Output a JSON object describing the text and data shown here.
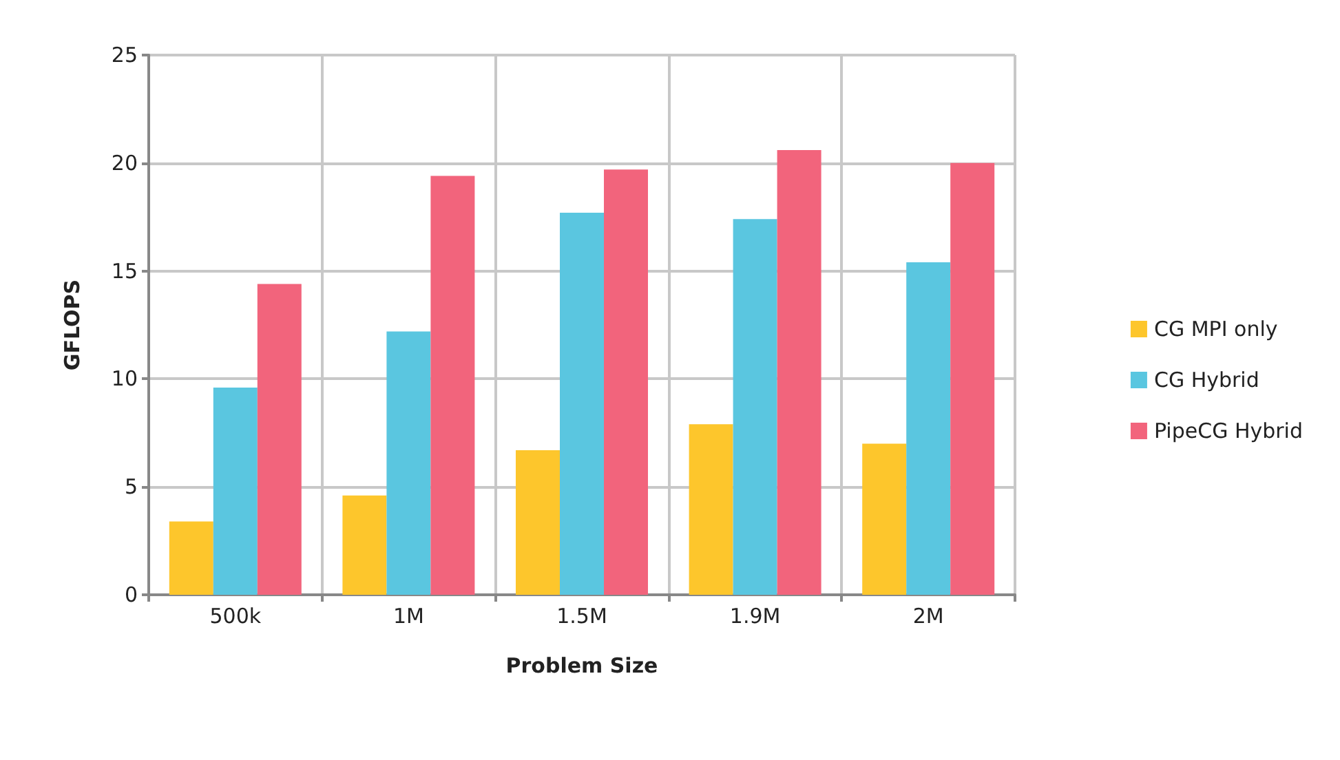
{
  "chart_data": {
    "type": "bar",
    "xlabel": "Problem Size",
    "ylabel": "GFLOPS",
    "categories": [
      "500k",
      "1M",
      "1.5M",
      "1.9M",
      "2M"
    ],
    "series": [
      {
        "name": "CG MPI only",
        "color": "#fdc62c",
        "values": [
          3.4,
          4.6,
          6.7,
          7.9,
          7.0
        ]
      },
      {
        "name": "CG Hybrid",
        "color": "#5ac6e0",
        "values": [
          9.6,
          12.2,
          17.7,
          17.4,
          15.4
        ]
      },
      {
        "name": "PipeCG Hybrid",
        "color": "#f2647c",
        "values": [
          14.4,
          19.4,
          19.7,
          20.6,
          20.0
        ]
      }
    ],
    "ylim": [
      0,
      25
    ],
    "yticks": [
      0,
      5,
      10,
      15,
      20,
      25
    ],
    "grid": true,
    "legend": "right"
  }
}
